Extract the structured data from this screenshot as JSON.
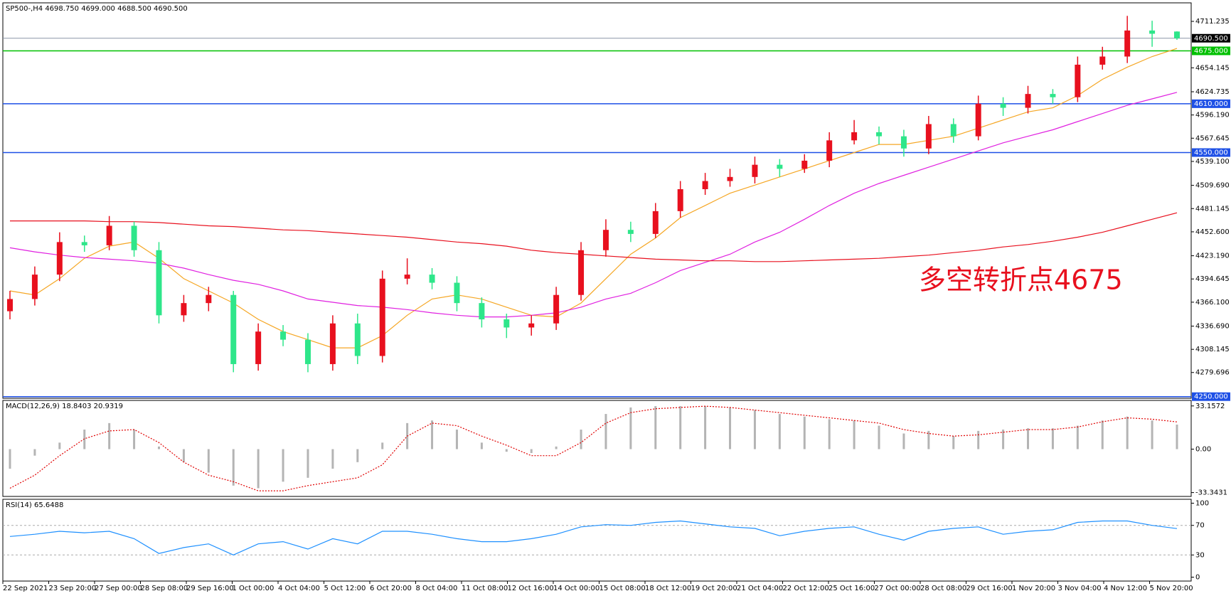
{
  "chart_data": [
    {
      "type": "candlestick",
      "title": "SP500-,H4  4698.750 4699.000 4688.500 4690.500",
      "annotation": "多空转折点4675",
      "up_color": "#e8101e",
      "down_color": "#2ee68a",
      "open": [
        4355,
        4370,
        4400,
        4440,
        4436,
        4460,
        4430,
        4350,
        4365,
        4375,
        4290,
        4330,
        4320,
        4290,
        4340,
        4300,
        4395,
        4400,
        4390,
        4365,
        4345,
        4335,
        4340,
        4375,
        4430,
        4455,
        4450,
        4478,
        4505,
        4515,
        4520,
        4535,
        4530,
        4540,
        4565,
        4575,
        4570,
        4555,
        4585,
        4570,
        4610,
        4605,
        4622,
        4618,
        4658,
        4668,
        4700,
        4698.75
      ],
      "high": [
        4380,
        4410,
        4452,
        4448,
        4472,
        4465,
        4440,
        4375,
        4385,
        4380,
        4340,
        4338,
        4328,
        4350,
        4352,
        4405,
        4420,
        4408,
        4398,
        4372,
        4352,
        4350,
        4385,
        4440,
        4468,
        4465,
        4488,
        4515,
        4525,
        4530,
        4545,
        4542,
        4548,
        4575,
        4590,
        4582,
        4578,
        4595,
        4592,
        4620,
        4618,
        4632,
        4628,
        4668,
        4680,
        4718,
        4712,
        4699
      ],
      "low": [
        4345,
        4362,
        4392,
        4428,
        4430,
        4422,
        4340,
        4342,
        4355,
        4280,
        4282,
        4312,
        4280,
        4282,
        4290,
        4292,
        4388,
        4382,
        4355,
        4335,
        4322,
        4325,
        4332,
        4368,
        4422,
        4440,
        4445,
        4470,
        4498,
        4508,
        4512,
        4520,
        4525,
        4532,
        4560,
        4560,
        4545,
        4548,
        4562,
        4565,
        4595,
        4598,
        4610,
        4612,
        4652,
        4660,
        4680,
        4688.5
      ],
      "close": [
        4370,
        4400,
        4440,
        4436,
        4460,
        4430,
        4350,
        4365,
        4375,
        4290,
        4330,
        4320,
        4290,
        4340,
        4300,
        4395,
        4400,
        4390,
        4365,
        4345,
        4335,
        4340,
        4375,
        4430,
        4455,
        4450,
        4478,
        4505,
        4515,
        4520,
        4535,
        4530,
        4540,
        4565,
        4575,
        4570,
        4555,
        4585,
        4570,
        4610,
        4605,
        4622,
        4618,
        4658,
        4668,
        4700,
        4696,
        4690.5
      ],
      "overlays": [
        {
          "color": "#f5a623",
          "values": [
            4380,
            4375,
            4395,
            4420,
            4435,
            4440,
            4420,
            4395,
            4380,
            4365,
            4345,
            4330,
            4320,
            4310,
            4310,
            4325,
            4350,
            4370,
            4375,
            4370,
            4360,
            4350,
            4348,
            4365,
            4395,
            4425,
            4445,
            4470,
            4485,
            4500,
            4510,
            4520,
            4530,
            4540,
            4550,
            4560,
            4560,
            4565,
            4570,
            4580,
            4590,
            4600,
            4605,
            4620,
            4640,
            4655,
            4668,
            4678
          ]
        },
        {
          "color": "#e020e0",
          "values": [
            4433,
            4428,
            4424,
            4421,
            4419,
            4417,
            4414,
            4408,
            4400,
            4393,
            4388,
            4380,
            4370,
            4366,
            4362,
            4360,
            4357,
            4353,
            4350,
            4348,
            4348,
            4350,
            4353,
            4360,
            4370,
            4377,
            4390,
            4405,
            4415,
            4425,
            4440,
            4452,
            4468,
            4485,
            4500,
            4512,
            4522,
            4532,
            4542,
            4552,
            4562,
            4570,
            4578,
            4588,
            4598,
            4608,
            4616,
            4624
          ]
        },
        {
          "color": "#e8101e",
          "values": [
            4466,
            4466,
            4466,
            4466,
            4465,
            4465,
            4464,
            4462,
            4460,
            4459,
            4457,
            4455,
            4454,
            4452,
            4450,
            4448,
            4446,
            4443,
            4440,
            4438,
            4435,
            4430,
            4427,
            4425,
            4423,
            4421,
            4419,
            4418,
            4417,
            4417,
            4416,
            4416,
            4417,
            4418,
            4419,
            4420,
            4422,
            4424,
            4427,
            4430,
            4434,
            4437,
            4441,
            4446,
            4452,
            4460,
            4468,
            4476
          ]
        }
      ],
      "levels": [
        {
          "value": 4675,
          "label": "4675.000",
          "color": "#00c000"
        },
        {
          "value": 4610,
          "label": "4610.000",
          "color": "#1e50e6"
        },
        {
          "value": 4550,
          "label": "4550.000",
          "color": "#1e50e6"
        },
        {
          "value": 4250,
          "label": "4250.000",
          "color": "#1e50e6"
        }
      ],
      "last_price": {
        "value": 4690.5,
        "label": "4690.500",
        "color": "#8a96a8"
      },
      "ylim": [
        4248,
        4734
      ],
      "yticks": [
        {
          "value": 4711.235,
          "label": "4711.235"
        },
        {
          "value": 4654.145,
          "label": "4654.145"
        },
        {
          "value": 4624.735,
          "label": "4624.735"
        },
        {
          "value": 4596.19,
          "label": "4596.190"
        },
        {
          "value": 4567.645,
          "label": "4567.645"
        },
        {
          "value": 4539.1,
          "label": "4539.100"
        },
        {
          "value": 4509.69,
          "label": "4509.690"
        },
        {
          "value": 4481.145,
          "label": "4481.145"
        },
        {
          "value": 4452.6,
          "label": "4452.600"
        },
        {
          "value": 4423.19,
          "label": "4423.190"
        },
        {
          "value": 4394.645,
          "label": "4394.645"
        },
        {
          "value": 4366.1,
          "label": "4366.100"
        },
        {
          "value": 4336.69,
          "label": "4336.690"
        },
        {
          "value": 4308.145,
          "label": "4308.145"
        },
        {
          "value": 4279.696,
          "label": "4279.696"
        }
      ],
      "time_axis_labels": [
        "22 Sep 2021",
        "23 Sep 20:00",
        "27 Sep 00:00",
        "28 Sep 08:00",
        "29 Sep 16:00",
        "1 Oct 00:00",
        "4 Oct 04:00",
        "5 Oct 12:00",
        "6 Oct 20:00",
        "8 Oct 04:00",
        "11 Oct 08:00",
        "12 Oct 16:00",
        "14 Oct 00:00",
        "15 Oct 08:00",
        "18 Oct 12:00",
        "19 Oct 20:00",
        "21 Oct 04:00",
        "22 Oct 12:00",
        "25 Oct 16:00",
        "27 Oct 00:00",
        "28 Oct 08:00",
        "29 Oct 16:00",
        "1 Nov 20:00",
        "3 Nov 04:00",
        "4 Nov 12:00",
        "5 Nov 20:00"
      ]
    },
    {
      "type": "macd",
      "title": "MACD(12,26,9) 18.8403 20.9319",
      "histogram": {
        "color": "#b4b4b4",
        "values": [
          -15,
          -5,
          5,
          15,
          20,
          15,
          2,
          -10,
          -18,
          -28,
          -30,
          -25,
          -22,
          -15,
          -10,
          5,
          20,
          22,
          15,
          5,
          -2,
          -3,
          2,
          15,
          27,
          32,
          33,
          33,
          33,
          32,
          30,
          27,
          25,
          23,
          22,
          18,
          12,
          14,
          10,
          14,
          15,
          16,
          16,
          18,
          22,
          25,
          22,
          18.8403
        ]
      },
      "signal": {
        "color": "#e00000",
        "values": [
          -30,
          -20,
          -5,
          8,
          14,
          15,
          5,
          -10,
          -20,
          -25,
          -32,
          -32,
          -28,
          -25,
          -22,
          -12,
          10,
          20,
          18,
          10,
          3,
          -5,
          -5,
          5,
          20,
          28,
          31,
          32,
          33,
          32,
          30,
          28,
          26,
          24,
          22,
          20,
          15,
          12,
          10,
          11,
          13,
          15,
          15,
          17,
          21,
          24,
          23,
          20.9319
        ]
      },
      "ylim": [
        -36.3,
        37.4
      ],
      "yticks": [
        33.1572,
        {
          "value": 0,
          "label": "0.00"
        },
        -33.3431
      ]
    },
    {
      "type": "rsi",
      "title": "RSI(14) 65.6488",
      "series": [
        {
          "color": "#1e90ff",
          "values": [
            55,
            58,
            62,
            60,
            62,
            52,
            32,
            40,
            45,
            30,
            45,
            48,
            38,
            52,
            45,
            62,
            62,
            58,
            52,
            48,
            48,
            52,
            58,
            68,
            71,
            70,
            74,
            76,
            72,
            68,
            66,
            56,
            62,
            66,
            68,
            58,
            50,
            62,
            66,
            68,
            58,
            62,
            64,
            74,
            76,
            76,
            70,
            65.6488
          ]
        }
      ],
      "guide_levels": [
        30,
        70
      ],
      "ylim": [
        -5.3,
        105.3
      ],
      "yticks": [
        100,
        70,
        30,
        0
      ]
    }
  ]
}
